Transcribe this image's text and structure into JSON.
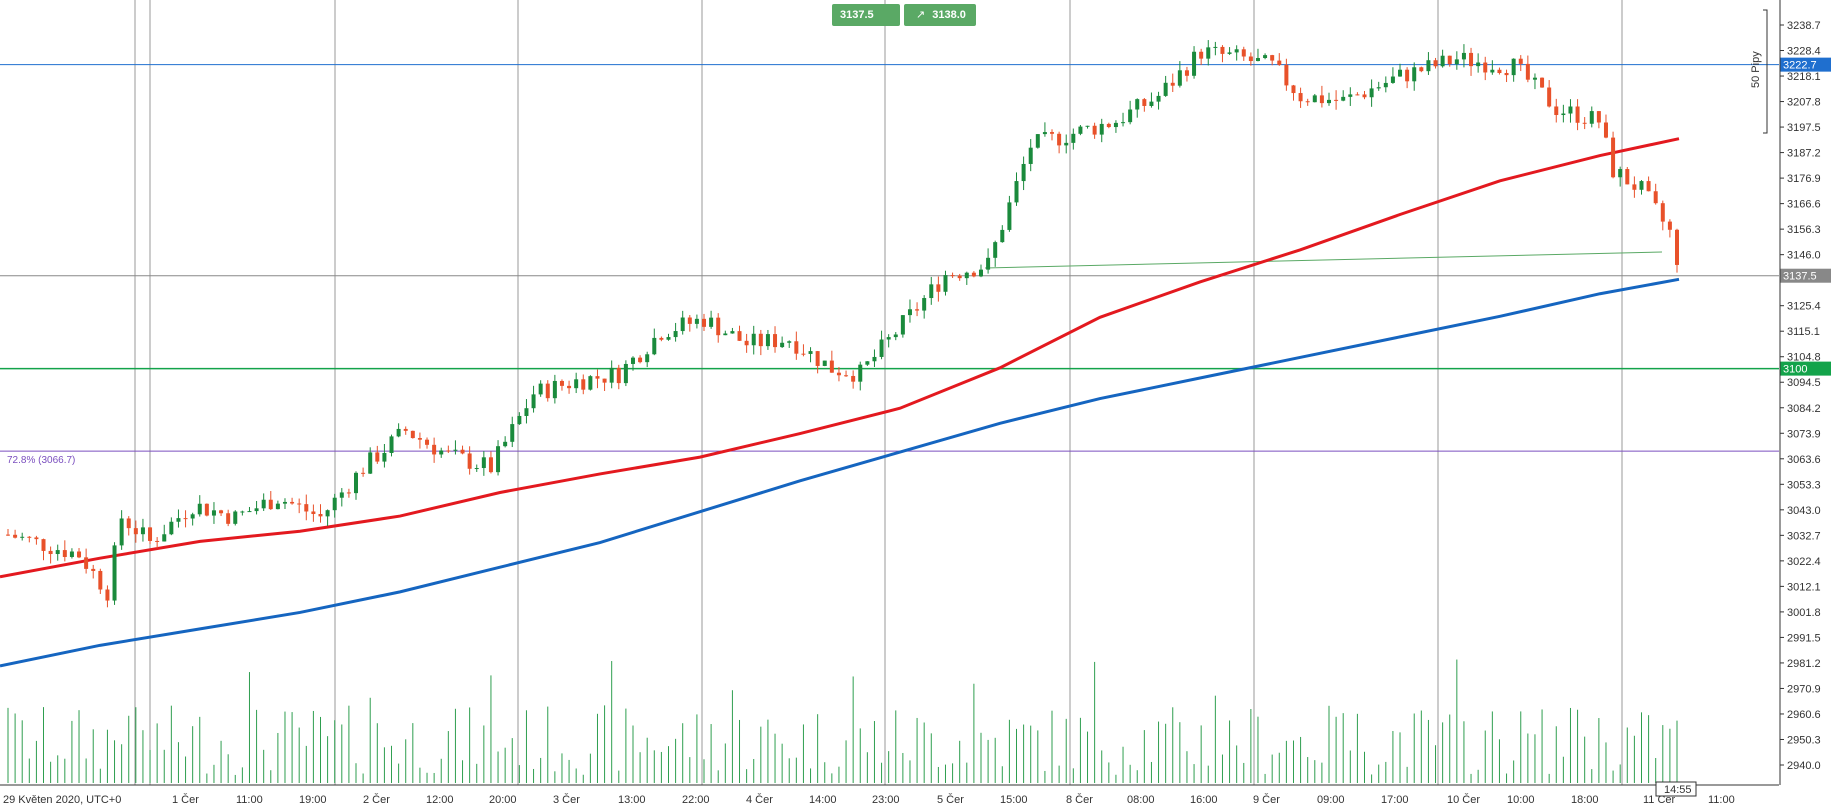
{
  "header": {
    "sell_price": "3137.5",
    "buy_price": "3138.0",
    "sell_icon": "arrow-up-right-icon",
    "buy_icon": "arrow-up-right-icon"
  },
  "scale_label": "50 Pipy",
  "chart_data": {
    "type": "candlestick",
    "ylim": [
      2930,
      3245
    ],
    "y_ticks": [
      "3238.7",
      "3228.4",
      "3218.1",
      "3207.8",
      "3197.5",
      "3187.2",
      "3176.9",
      "3166.6",
      "3156.3",
      "3146.0",
      "3125.4",
      "3115.1",
      "3104.8",
      "3094.5",
      "3084.2",
      "3073.9",
      "3063.6",
      "3053.3",
      "3043.0",
      "3032.7",
      "3022.4",
      "3012.1",
      "3001.8",
      "2991.5",
      "2981.2",
      "2970.9",
      "2960.6",
      "2950.3",
      "2940.0"
    ],
    "y_tick_values": [
      3238.7,
      3228.4,
      3218.1,
      3207.8,
      3197.5,
      3187.2,
      3176.9,
      3166.6,
      3156.3,
      3146.0,
      3125.4,
      3115.1,
      3104.8,
      3094.5,
      3084.2,
      3073.9,
      3063.6,
      3053.3,
      3043.0,
      3032.7,
      3022.4,
      3012.1,
      3001.8,
      2991.5,
      2981.2,
      2970.9,
      2960.6,
      2950.3,
      2940.0
    ],
    "x_labels": [
      "29 Květen 2020, UTC+0",
      "1 Čer",
      "11:00",
      "19:00",
      "2 Čer",
      "12:00",
      "20:00",
      "3 Čer",
      "13:00",
      "22:00",
      "4 Čer",
      "14:00",
      "23:00",
      "5 Čer",
      "15:00",
      "8 Čer",
      "08:00",
      "16:00",
      "9 Čer",
      "09:00",
      "17:00",
      "10 Čer",
      "10:00",
      "18:00",
      "11 Čer",
      "11:00"
    ],
    "horizontal_levels": [
      {
        "value": 3222.7,
        "label": "3222.7",
        "color": "#1f6fcf"
      },
      {
        "value": 3137.5,
        "label": "3137.5",
        "color": "#888888"
      },
      {
        "value": 3100.0,
        "label": "3100",
        "color": "#13a34a"
      },
      {
        "value": 3066.7,
        "label": "72.8% (3066.7)",
        "color": "#7b4fbf"
      }
    ],
    "current_time": "14:55",
    "bullish_color": "#1a8a3c",
    "bearish_color": "#e8512a",
    "ma_red_color": "#e3191f",
    "ma_blue_color": "#1565c0",
    "volume_color": "#2e9e4f"
  }
}
